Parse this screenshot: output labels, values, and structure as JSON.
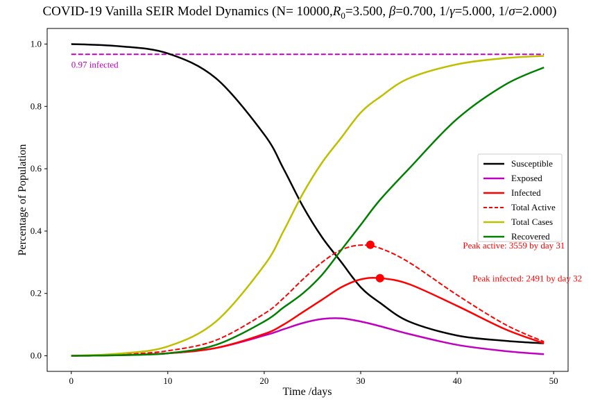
{
  "chart_data": {
    "type": "line",
    "title": "COVID-19 Vanilla SEIR Model Dynamics (N= 10000,R0=3.500, β=0.700, 1/γ=5.000, 1/σ=2.000)",
    "title_parts": {
      "prefix": "COVID-19 Vanilla SEIR Model Dynamics (N= 10000,",
      "r": "R",
      "r_sub": "0",
      "after_r": "=3.500, ",
      "beta": "β",
      "after_beta": "=0.700, 1/",
      "gamma": "γ",
      "after_gamma": "=5.000, 1/",
      "sigma": "σ",
      "suffix": "=2.000)"
    },
    "xlabel": "Time /days",
    "ylabel": "Percentage of Population",
    "xlim": [
      -2.5,
      51.5
    ],
    "ylim": [
      -0.05,
      1.05
    ],
    "xticks": [
      0,
      10,
      20,
      30,
      40,
      50
    ],
    "xtick_labels": [
      "0",
      "10",
      "20",
      "30",
      "40",
      "50"
    ],
    "yticks": [
      0.0,
      0.2,
      0.4,
      0.6,
      0.8,
      1.0
    ],
    "ytick_labels": [
      "0.0",
      "0.2",
      "0.4",
      "0.6",
      "0.8",
      "1.0"
    ],
    "grid": false,
    "legend_position": "center-right",
    "x": [
      0,
      5,
      10,
      15,
      20,
      22,
      24,
      26,
      28,
      30,
      32,
      35,
      40,
      45,
      49
    ],
    "series": [
      {
        "name": "Susceptible",
        "color": "#000000",
        "dash": "solid",
        "values": [
          1.0,
          0.993,
          0.97,
          0.89,
          0.71,
          0.6,
          0.48,
          0.38,
          0.3,
          0.22,
          0.17,
          0.11,
          0.065,
          0.048,
          0.04
        ]
      },
      {
        "name": "Exposed",
        "color": "#bf00bf",
        "dash": "solid",
        "values": [
          0.0,
          0.002,
          0.008,
          0.025,
          0.065,
          0.085,
          0.105,
          0.118,
          0.12,
          0.11,
          0.095,
          0.07,
          0.035,
          0.015,
          0.005
        ]
      },
      {
        "name": "Infected",
        "color": "#ff0000",
        "dash": "solid",
        "values": [
          0.0,
          0.002,
          0.008,
          0.025,
          0.07,
          0.1,
          0.14,
          0.18,
          0.22,
          0.245,
          0.249,
          0.23,
          0.16,
          0.085,
          0.04
        ]
      },
      {
        "name": "Total Active",
        "color": "#ff0000",
        "dash": "dashed",
        "values": [
          0.0,
          0.004,
          0.016,
          0.05,
          0.135,
          0.185,
          0.245,
          0.3,
          0.34,
          0.355,
          0.345,
          0.3,
          0.195,
          0.1,
          0.045
        ]
      },
      {
        "name": "Total Cases",
        "color": "#bfbf00",
        "dash": "solid",
        "values": [
          0.0,
          0.007,
          0.03,
          0.11,
          0.29,
          0.4,
          0.52,
          0.62,
          0.7,
          0.78,
          0.83,
          0.89,
          0.935,
          0.955,
          0.962
        ]
      },
      {
        "name": "Recovered",
        "color": "#008000",
        "dash": "solid",
        "values": [
          0.0,
          0.002,
          0.008,
          0.035,
          0.11,
          0.155,
          0.2,
          0.26,
          0.34,
          0.42,
          0.5,
          0.6,
          0.76,
          0.87,
          0.925
        ]
      }
    ],
    "hline": {
      "y": 0.967,
      "color": "#bf00bf",
      "dash": "dashed",
      "x_from": 0,
      "x_to": 49
    },
    "annotations": [
      {
        "text": "0.97 infected",
        "x": 0,
        "y": 0.935,
        "color": "#bf00bf",
        "size": "large"
      },
      {
        "text": "Peak active: 3559 by day 31",
        "x": 40.6,
        "y": 0.355,
        "color": "#ff0000",
        "marker_x": 31,
        "marker_y": 0.356
      },
      {
        "text": "Peak infected: 2491 by day 32",
        "x": 41.6,
        "y": 0.25,
        "color": "#ff0000",
        "marker_x": 32,
        "marker_y": 0.249
      }
    ]
  }
}
